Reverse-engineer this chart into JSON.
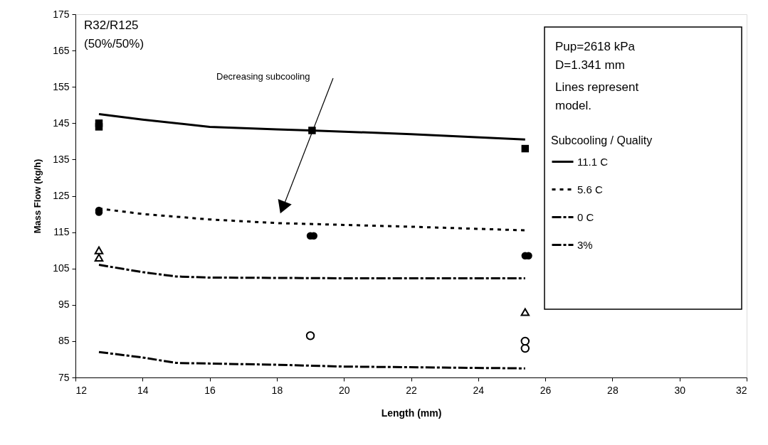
{
  "chart_data": {
    "type": "line",
    "xlabel": "Length (mm)",
    "ylabel": "Mass Flow (kg/h)",
    "legend_title": "Subcooling / Quality",
    "xlim": [
      12,
      32
    ],
    "xticks": [
      12,
      14,
      16,
      18,
      20,
      22,
      24,
      26,
      28,
      30,
      32
    ],
    "ylim": [
      75,
      175
    ],
    "yticks": [
      75,
      85,
      95,
      105,
      115,
      125,
      135,
      145,
      155,
      165,
      175
    ],
    "grid": false,
    "legend": "right",
    "annotations": [
      "R32/R125",
      "(50%/50%)",
      "Pup=2618 kPa",
      "D=1.341  mm",
      "Lines represent model.",
      "Decreasing subcooling"
    ],
    "series": [
      {
        "name": "11.1 C",
        "type": "line",
        "color": "#000000",
        "line_style": "solid",
        "x": [
          12.7,
          14,
          16,
          18,
          19,
          22,
          25.4
        ],
        "values": [
          147.5,
          146,
          144,
          143.3,
          143,
          142,
          140.5
        ]
      },
      {
        "name": "5.6 C",
        "type": "line",
        "color": "#000000",
        "line_style": "dotted",
        "x": [
          12.7,
          14,
          16,
          18,
          20,
          22,
          25.4
        ],
        "values": [
          121.5,
          120,
          118.5,
          117.5,
          117,
          116.5,
          115.5
        ]
      },
      {
        "name": "0 C",
        "type": "line",
        "color": "#000000",
        "line_style": "dashed",
        "x": [
          12.7,
          14,
          15,
          16,
          20,
          25.4
        ],
        "values": [
          106,
          104,
          102.8,
          102.5,
          102.3,
          102.3
        ]
      },
      {
        "name": "3%",
        "type": "line",
        "color": "#000000",
        "line_style": "dashed",
        "x": [
          12.7,
          14,
          15,
          18,
          20,
          25.4
        ],
        "values": [
          82,
          80.5,
          79,
          78.5,
          78,
          77.5
        ]
      },
      {
        "type": "scatter",
        "marker": "square",
        "color": "#000000",
        "x": [
          12.7,
          12.7,
          19.05,
          25.4
        ],
        "values": [
          145,
          144,
          143,
          138
        ]
      },
      {
        "type": "scatter",
        "marker": "circle",
        "color": "#000000",
        "x": [
          12.7,
          12.7,
          19.0,
          19.1,
          25.4,
          25.5
        ],
        "values": [
          121,
          120.5,
          114,
          114,
          108.5,
          108.5
        ]
      },
      {
        "type": "scatter",
        "marker": "triangle",
        "color": "#000000",
        "x": [
          12.7,
          12.7,
          25.4
        ],
        "values": [
          110,
          108,
          93
        ]
      },
      {
        "type": "scatter",
        "marker": "circle",
        "color": "#000000",
        "x": [
          19.0,
          25.4,
          25.4
        ],
        "values": [
          86.5,
          85,
          83
        ]
      }
    ]
  }
}
